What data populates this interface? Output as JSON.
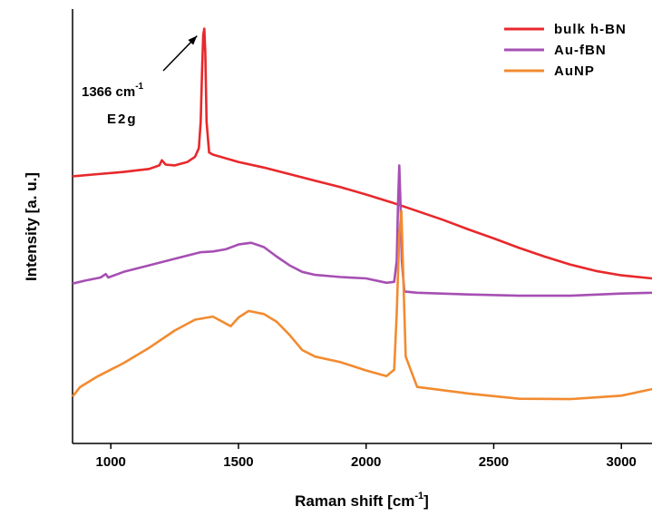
{
  "chart_data": {
    "type": "line",
    "xlabel": "Raman shift [cm",
    "xlabel_sup": "-1",
    "xlabel_end": "]",
    "ylabel": "Intensity [a. u.]",
    "xlim": [
      850,
      3120
    ],
    "ylim": [
      0,
      1
    ],
    "xticks": [
      1000,
      1500,
      2000,
      2500,
      3000
    ],
    "y_tick_labels": false,
    "grid": false,
    "legend_position": "top-right",
    "annotation": {
      "line1": "1366 cm",
      "line1_sup": "-1",
      "line2": "E2g",
      "x": 1366,
      "y": 0.955
    },
    "series": [
      {
        "name": "bulk h-BN",
        "color": "#e8282b",
        "points": [
          [
            850,
            0.615
          ],
          [
            950,
            0.62
          ],
          [
            1050,
            0.625
          ],
          [
            1150,
            0.632
          ],
          [
            1190,
            0.64
          ],
          [
            1200,
            0.652
          ],
          [
            1215,
            0.642
          ],
          [
            1250,
            0.64
          ],
          [
            1300,
            0.648
          ],
          [
            1330,
            0.66
          ],
          [
            1345,
            0.68
          ],
          [
            1352,
            0.74
          ],
          [
            1358,
            0.87
          ],
          [
            1362,
            0.94
          ],
          [
            1366,
            0.955
          ],
          [
            1370,
            0.9
          ],
          [
            1375,
            0.74
          ],
          [
            1385,
            0.67
          ],
          [
            1400,
            0.665
          ],
          [
            1500,
            0.648
          ],
          [
            1600,
            0.635
          ],
          [
            1700,
            0.62
          ],
          [
            1800,
            0.605
          ],
          [
            1900,
            0.59
          ],
          [
            2000,
            0.573
          ],
          [
            2100,
            0.555
          ],
          [
            2200,
            0.535
          ],
          [
            2300,
            0.515
          ],
          [
            2400,
            0.493
          ],
          [
            2500,
            0.472
          ],
          [
            2600,
            0.45
          ],
          [
            2700,
            0.43
          ],
          [
            2800,
            0.412
          ],
          [
            2900,
            0.397
          ],
          [
            3000,
            0.387
          ],
          [
            3120,
            0.38
          ]
        ]
      },
      {
        "name": "Au-fBN",
        "color": "#a64fb3",
        "points": [
          [
            850,
            0.368
          ],
          [
            900,
            0.375
          ],
          [
            960,
            0.382
          ],
          [
            980,
            0.39
          ],
          [
            990,
            0.382
          ],
          [
            1050,
            0.395
          ],
          [
            1150,
            0.41
          ],
          [
            1250,
            0.425
          ],
          [
            1350,
            0.44
          ],
          [
            1400,
            0.442
          ],
          [
            1450,
            0.447
          ],
          [
            1500,
            0.458
          ],
          [
            1550,
            0.462
          ],
          [
            1600,
            0.452
          ],
          [
            1650,
            0.43
          ],
          [
            1700,
            0.41
          ],
          [
            1750,
            0.395
          ],
          [
            1800,
            0.388
          ],
          [
            1900,
            0.383
          ],
          [
            2000,
            0.38
          ],
          [
            2080,
            0.37
          ],
          [
            2110,
            0.372
          ],
          [
            2120,
            0.42
          ],
          [
            2125,
            0.55
          ],
          [
            2130,
            0.64
          ],
          [
            2135,
            0.55
          ],
          [
            2140,
            0.42
          ],
          [
            2150,
            0.35
          ],
          [
            2200,
            0.347
          ],
          [
            2400,
            0.343
          ],
          [
            2600,
            0.34
          ],
          [
            2800,
            0.34
          ],
          [
            3000,
            0.345
          ],
          [
            3120,
            0.347
          ]
        ]
      },
      {
        "name": "AuNP",
        "color": "#f28b30",
        "points": [
          [
            850,
            0.108
          ],
          [
            880,
            0.13
          ],
          [
            950,
            0.155
          ],
          [
            1050,
            0.185
          ],
          [
            1150,
            0.22
          ],
          [
            1250,
            0.26
          ],
          [
            1330,
            0.285
          ],
          [
            1400,
            0.292
          ],
          [
            1470,
            0.27
          ],
          [
            1500,
            0.29
          ],
          [
            1540,
            0.305
          ],
          [
            1600,
            0.298
          ],
          [
            1650,
            0.28
          ],
          [
            1700,
            0.25
          ],
          [
            1750,
            0.215
          ],
          [
            1800,
            0.2
          ],
          [
            1900,
            0.187
          ],
          [
            2000,
            0.168
          ],
          [
            2080,
            0.155
          ],
          [
            2110,
            0.17
          ],
          [
            2120,
            0.3
          ],
          [
            2130,
            0.48
          ],
          [
            2138,
            0.535
          ],
          [
            2145,
            0.4
          ],
          [
            2155,
            0.2
          ],
          [
            2200,
            0.13
          ],
          [
            2400,
            0.115
          ],
          [
            2600,
            0.103
          ],
          [
            2800,
            0.102
          ],
          [
            3000,
            0.11
          ],
          [
            3120,
            0.125
          ]
        ]
      }
    ]
  }
}
